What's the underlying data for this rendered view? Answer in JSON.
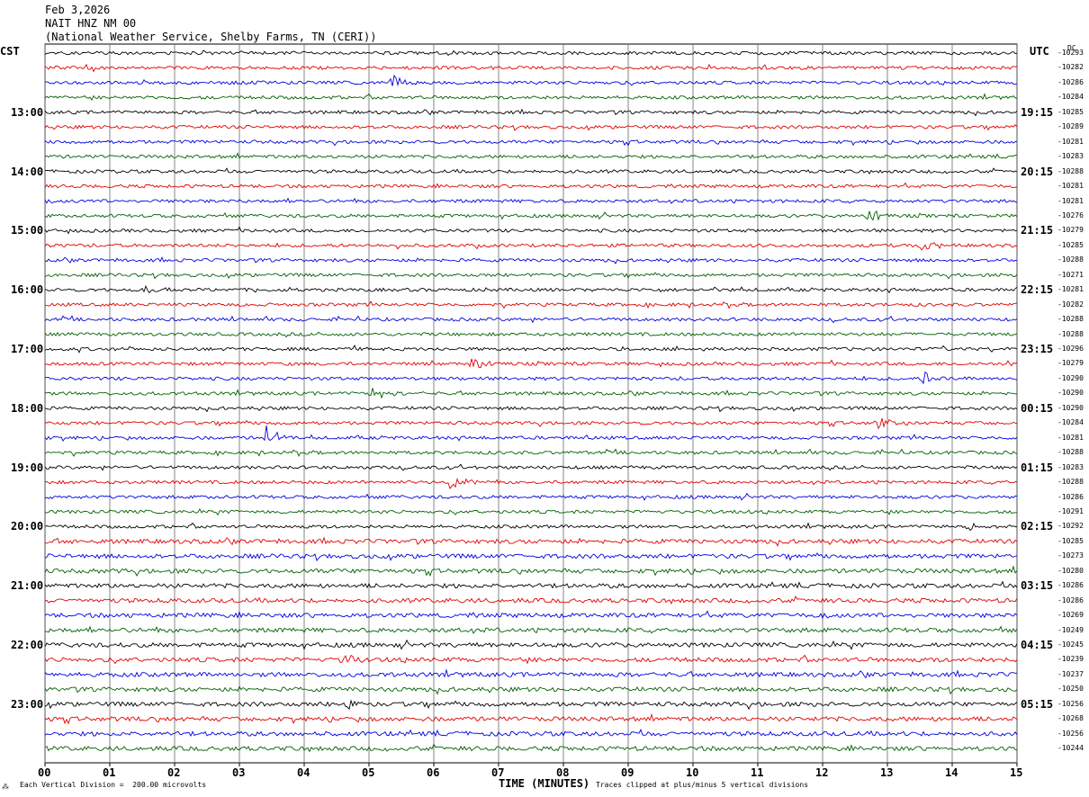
{
  "header": {
    "date": "Feb 3,2026",
    "station": "NAIT HNZ NM 00",
    "network": "(National Weather Service, Shelby Farms, TN (CERI))"
  },
  "left_zone": "CST",
  "right_zone": "UTC",
  "dc_title": "DC",
  "footer": {
    "scale": "Each Vertical Division =  200.00 microvolts",
    "x_title": "TIME (MINUTES)",
    "clip_note": "Traces clipped at plus/minus 5 vertical divisions",
    "corner_mark": "⁂"
  },
  "chart_data": {
    "type": "line",
    "title": "NAIT HNZ NM 00",
    "xlabel": "TIME (MINUTES)",
    "xlim": [
      0,
      15
    ],
    "x_ticks": [
      "00",
      "01",
      "02",
      "03",
      "04",
      "05",
      "06",
      "07",
      "08",
      "09",
      "10",
      "11",
      "12",
      "13",
      "14",
      "15"
    ],
    "trace_colors": [
      "#000000",
      "#e00000",
      "#0000e0",
      "#006000"
    ],
    "left_hour_labels": [
      "13:00",
      "14:00",
      "15:00",
      "16:00",
      "17:00",
      "18:00",
      "19:00",
      "20:00",
      "21:00",
      "22:00",
      "23:00"
    ],
    "right_hour_labels": [
      "19:15",
      "20:15",
      "21:15",
      "22:15",
      "23:15",
      "00:15",
      "01:15",
      "02:15",
      "03:15",
      "04:15",
      "05:15"
    ],
    "dc_offsets": [
      "-10293",
      "-10282",
      "-10286",
      "-10284",
      "-10285",
      "-10289",
      "-10281",
      "-10283",
      "-10288",
      "-10281",
      "-10281",
      "-10276",
      "-10279",
      "-10285",
      "-10288",
      "-10271",
      "-10281",
      "-10282",
      "-10288",
      "-10288",
      "-10296",
      "-10279",
      "-10290",
      "-10290",
      "-10290",
      "-10284",
      "-10281",
      "-10288",
      "-10283",
      "-10288",
      "-10286",
      "-10291",
      "-10292",
      "-10285",
      "-10273",
      "-10280",
      "-10286",
      "-10286",
      "-10269",
      "-10249",
      "-10245",
      "-10239",
      "-10237",
      "-10250",
      "-10256",
      "-10268",
      "-10256",
      "-10244"
    ],
    "events": [
      {
        "trace": 2,
        "minute": 5.35,
        "amp": 3.0
      },
      {
        "trace": 11,
        "minute": 12.7,
        "amp": 2.5
      },
      {
        "trace": 13,
        "minute": 13.5,
        "amp": 2.8
      },
      {
        "trace": 16,
        "minute": 1.55,
        "amp": 2.0
      },
      {
        "trace": 21,
        "minute": 6.55,
        "amp": 2.8
      },
      {
        "trace": 21,
        "minute": 14.9,
        "amp": 2.0
      },
      {
        "trace": 22,
        "minute": 13.55,
        "amp": 2.2
      },
      {
        "trace": 23,
        "minute": 5.05,
        "amp": 2.0
      },
      {
        "trace": 26,
        "minute": 3.4,
        "amp": 4.0
      },
      {
        "trace": 25,
        "minute": 12.85,
        "amp": 2.0
      },
      {
        "trace": 29,
        "minute": 6.25,
        "amp": 2.5
      },
      {
        "trace": 32,
        "minute": 14.15,
        "amp": 1.8
      },
      {
        "trace": 41,
        "minute": 4.6,
        "amp": 1.8
      },
      {
        "trace": 44,
        "minute": 4.6,
        "amp": 2.0
      }
    ]
  }
}
